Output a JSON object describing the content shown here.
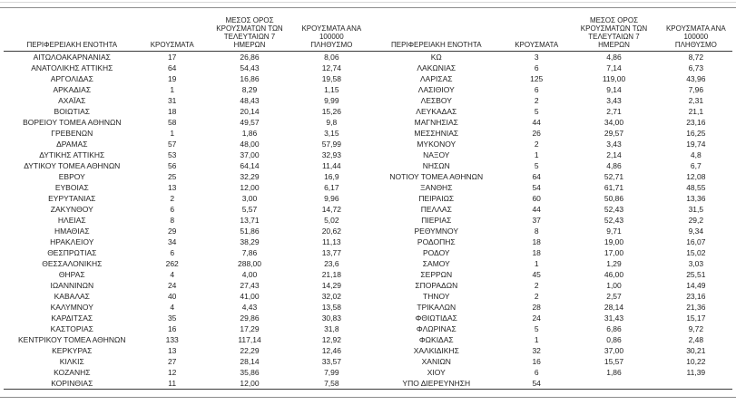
{
  "chart_data": {
    "type": "table",
    "title": "",
    "columns": [
      "ΠΕΡΙΦΕΡΕΙΑΚΗ ΕΝΟΤΗΤΑ",
      "ΚΡΟΥΣΜΑΤΑ",
      "ΜΕΣΟΣ ΟΡΟΣ ΚΡΟΥΣΜΑΤΩΝ ΤΩΝ ΤΕΛΕΥΤΑΙΩΝ 7 ΗΜΕΡΩΝ",
      "ΚΡΟΥΣΜΑΤΑ ΑΝΑ 100000 ΠΛΗΘΥΣΜΟ"
    ],
    "layout": {
      "panels": 2,
      "rows_per_panel": 31,
      "grid": false
    },
    "rows": [
      [
        "ΑΙΤΩΛΟΑΚΑΡΝΑΝΙΑΣ",
        "17",
        "26,86",
        "8,06"
      ],
      [
        "ΑΝΑΤΟΛΙΚΗΣ ΑΤΤΙΚΗΣ",
        "64",
        "54,43",
        "12,74"
      ],
      [
        "ΑΡΓΟΛΙΔΑΣ",
        "19",
        "16,86",
        "19,58"
      ],
      [
        "ΑΡΚΑΔΙΑΣ",
        "1",
        "8,29",
        "1,15"
      ],
      [
        "ΑΧΑΪΑΣ",
        "31",
        "48,43",
        "9,99"
      ],
      [
        "ΒΟΙΩΤΙΑΣ",
        "18",
        "20,14",
        "15,26"
      ],
      [
        "ΒΟΡΕΙΟΥ ΤΟΜΕΑ ΑΘΗΝΩΝ",
        "58",
        "49,57",
        "9,8"
      ],
      [
        "ΓΡΕΒΕΝΩΝ",
        "1",
        "1,86",
        "3,15"
      ],
      [
        "ΔΡΑΜΑΣ",
        "57",
        "48,00",
        "57,99"
      ],
      [
        "ΔΥΤΙΚΗΣ ΑΤΤΙΚΗΣ",
        "53",
        "37,00",
        "32,93"
      ],
      [
        "ΔΥΤΙΚΟΥ ΤΟΜΕΑ ΑΘΗΝΩΝ",
        "56",
        "64,14",
        "11,44"
      ],
      [
        "ΕΒΡΟΥ",
        "25",
        "32,29",
        "16,9"
      ],
      [
        "ΕΥΒΟΙΑΣ",
        "13",
        "12,00",
        "6,17"
      ],
      [
        "ΕΥΡΥΤΑΝΙΑΣ",
        "2",
        "3,00",
        "9,96"
      ],
      [
        "ΖΑΚΥΝΘΟΥ",
        "6",
        "5,57",
        "14,72"
      ],
      [
        "ΗΛΕΙΑΣ",
        "8",
        "13,71",
        "5,02"
      ],
      [
        "ΗΜΑΘΙΑΣ",
        "29",
        "51,86",
        "20,62"
      ],
      [
        "ΗΡΑΚΛΕΙΟΥ",
        "34",
        "38,29",
        "11,13"
      ],
      [
        "ΘΕΣΠΡΩΤΙΑΣ",
        "6",
        "7,86",
        "13,77"
      ],
      [
        "ΘΕΣΣΑΛΟΝΙΚΗΣ",
        "262",
        "288,00",
        "23,6"
      ],
      [
        "ΘΗΡΑΣ",
        "4",
        "4,00",
        "21,18"
      ],
      [
        "ΙΩΑΝΝΙΝΩΝ",
        "24",
        "27,43",
        "14,29"
      ],
      [
        "ΚΑΒΑΛΑΣ",
        "40",
        "41,00",
        "32,02"
      ],
      [
        "ΚΑΛΥΜΝΟΥ",
        "4",
        "4,43",
        "13,58"
      ],
      [
        "ΚΑΡΔΙΤΣΑΣ",
        "35",
        "29,86",
        "30,83"
      ],
      [
        "ΚΑΣΤΟΡΙΑΣ",
        "16",
        "17,29",
        "31,8"
      ],
      [
        "ΚΕΝΤΡΙΚΟΥ ΤΟΜΕΑ ΑΘΗΝΩΝ",
        "133",
        "117,14",
        "12,92"
      ],
      [
        "ΚΕΡΚΥΡΑΣ",
        "13",
        "22,29",
        "12,46"
      ],
      [
        "ΚΙΛΚΙΣ",
        "27",
        "28,14",
        "33,57"
      ],
      [
        "ΚΟΖΑΝΗΣ",
        "12",
        "35,86",
        "7,99"
      ],
      [
        "ΚΟΡΙΝΘΙΑΣ",
        "11",
        "12,00",
        "7,58"
      ],
      [
        "ΚΩ",
        "3",
        "4,86",
        "8,72"
      ],
      [
        "ΛΑΚΩΝΙΑΣ",
        "6",
        "7,14",
        "6,73"
      ],
      [
        "ΛΑΡΙΣΑΣ",
        "125",
        "119,00",
        "43,96"
      ],
      [
        "ΛΑΣΙΘΙΟΥ",
        "6",
        "9,14",
        "7,96"
      ],
      [
        "ΛΕΣΒΟΥ",
        "2",
        "3,43",
        "2,31"
      ],
      [
        "ΛΕΥΚΑΔΑΣ",
        "5",
        "2,71",
        "21,1"
      ],
      [
        "ΜΑΓΝΗΣΙΑΣ",
        "44",
        "34,00",
        "23,16"
      ],
      [
        "ΜΕΣΣΗΝΙΑΣ",
        "26",
        "29,57",
        "16,25"
      ],
      [
        "ΜΥΚΟΝΟΥ",
        "2",
        "3,43",
        "19,74"
      ],
      [
        "ΝΑΞΟΥ",
        "1",
        "2,14",
        "4,8"
      ],
      [
        "ΝΗΣΩΝ",
        "5",
        "4,86",
        "6,7"
      ],
      [
        "ΝΟΤΙΟΥ ΤΟΜΕΑ ΑΘΗΝΩΝ",
        "64",
        "52,71",
        "12,08"
      ],
      [
        "ΞΑΝΘΗΣ",
        "54",
        "61,71",
        "48,55"
      ],
      [
        "ΠΕΙΡΑΙΩΣ",
        "60",
        "50,86",
        "13,36"
      ],
      [
        "ΠΕΛΛΑΣ",
        "44",
        "52,43",
        "31,5"
      ],
      [
        "ΠΙΕΡΙΑΣ",
        "37",
        "52,43",
        "29,2"
      ],
      [
        "ΡΕΘΥΜΝΟΥ",
        "8",
        "9,71",
        "9,34"
      ],
      [
        "ΡΟΔΟΠΗΣ",
        "18",
        "19,00",
        "16,07"
      ],
      [
        "ΡΟΔΟΥ",
        "18",
        "17,00",
        "15,02"
      ],
      [
        "ΣΑΜΟΥ",
        "1",
        "1,29",
        "3,03"
      ],
      [
        "ΣΕΡΡΩΝ",
        "45",
        "46,00",
        "25,51"
      ],
      [
        "ΣΠΟΡΑΔΩΝ",
        "2",
        "1,00",
        "14,49"
      ],
      [
        "ΤΗΝΟΥ",
        "2",
        "2,57",
        "23,16"
      ],
      [
        "ΤΡΙΚΑΛΩΝ",
        "28",
        "28,14",
        "21,36"
      ],
      [
        "ΦΘΙΩΤΙΔΑΣ",
        "24",
        "31,43",
        "15,17"
      ],
      [
        "ΦΛΩΡΙΝΑΣ",
        "5",
        "6,86",
        "9,72"
      ],
      [
        "ΦΩΚΙΔΑΣ",
        "1",
        "0,86",
        "2,48"
      ],
      [
        "ΧΑΛΚΙΔΙΚΗΣ",
        "32",
        "37,00",
        "30,21"
      ],
      [
        "ΧΑΝΙΩΝ",
        "16",
        "15,57",
        "10,22"
      ],
      [
        "ΧΙΟΥ",
        "6",
        "1,86",
        "11,39"
      ],
      [
        "ΥΠΟ ΔΙΕΡΕΥΝΗΣΗ",
        "54",
        "",
        ""
      ]
    ]
  }
}
